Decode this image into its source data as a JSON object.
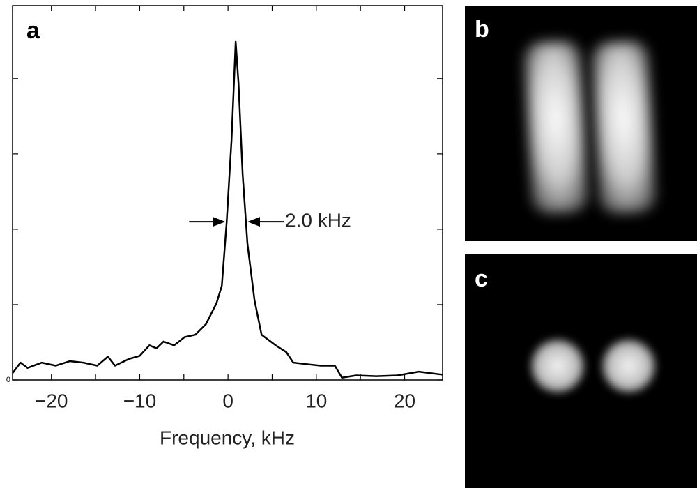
{
  "chart_data": {
    "type": "line",
    "panel_label": "a",
    "x_label": "Frequency, kHz",
    "x": [
      -24.4,
      -23.5,
      -22.7,
      -21.1,
      -19.5,
      -17.9,
      -16.4,
      -14.8,
      -13.6,
      -12.8,
      -11.2,
      -10,
      -8.9,
      -8.1,
      -7.3,
      -6.1,
      -4.9,
      -3.7,
      -2.5,
      -1.3,
      -0.7,
      -0.16,
      0.4,
      0.87,
      1.19,
      1.66,
      2.2,
      3.0,
      3.8,
      5.4,
      6.6,
      7.4,
      8.9,
      10.5,
      12.1,
      12.9,
      14.5,
      16.8,
      19.2,
      21.6,
      24.3
    ],
    "series": [
      {
        "color": "#000000",
        "values": [
          0.09,
          0.23,
          0.16,
          0.23,
          0.19,
          0.25,
          0.23,
          0.19,
          0.31,
          0.19,
          0.28,
          0.32,
          0.46,
          0.42,
          0.51,
          0.46,
          0.57,
          0.6,
          0.74,
          1.02,
          1.25,
          2.08,
          3.19,
          4.49,
          3.94,
          2.73,
          1.81,
          1.06,
          0.6,
          0.46,
          0.37,
          0.23,
          0.21,
          0.19,
          0.19,
          0.03,
          0.06,
          0.05,
          0.06,
          0.11,
          0.07
        ]
      }
    ],
    "xlim": [
      -24.4,
      24.3
    ],
    "ylim": [
      0,
      4.97
    ],
    "xticks": [
      {
        "value": -20,
        "label": "−20"
      },
      {
        "value": -10,
        "label": "−10"
      },
      0,
      10,
      20
    ],
    "xminorticks": [
      -15,
      -5,
      5,
      15
    ],
    "yticks": [
      0
    ],
    "yminorticks": [
      1,
      2,
      3,
      4
    ],
    "annotation": {
      "text": "2.0 kHz",
      "y": 2.1,
      "x_left": -0.3,
      "x_right": 2.2
    }
  },
  "images": [
    {
      "label": "b"
    },
    {
      "label": "c"
    }
  ]
}
